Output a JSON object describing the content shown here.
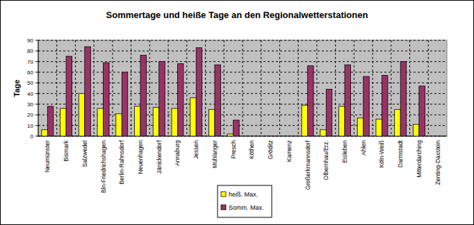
{
  "chart_data": {
    "type": "bar",
    "title": "Sommertage und heiße Tage an den Regionalwetterstationen",
    "y_label": "Tage",
    "categories": [
      "Neumünster",
      "Bismark",
      "Salzwedel",
      "Bln-Friedrichshagen",
      "Berlin-Rahnsdorf",
      "Neuenhagen",
      "Jänickendorf",
      "Annaburg",
      "Jessen",
      "Mühlanger",
      "Presch",
      "Köthen",
      "Gröditz",
      "Kamenz",
      "Großerkmannsdorf",
      "Olbernhau/Erz.",
      "Eisleben",
      "Ahlen",
      "Köln-Weiß",
      "Darmstadt",
      "Mitterdarching",
      "Zenting-Daxstein"
    ],
    "series": [
      {
        "name": "heiß. Max.",
        "color": "#ffff00",
        "values": [
          6,
          26,
          40,
          26,
          21,
          28,
          27,
          26,
          36,
          25,
          2,
          null,
          null,
          null,
          29,
          6,
          28,
          17,
          16,
          25,
          11,
          null
        ]
      },
      {
        "name": "Somm. Max.",
        "color": "#993366",
        "values": [
          28,
          75,
          84,
          69,
          60,
          76,
          70,
          68,
          83,
          67,
          15,
          null,
          null,
          null,
          66,
          44,
          67,
          56,
          57,
          70,
          47,
          null
        ]
      }
    ],
    "ylim": [
      0,
      90
    ],
    "yticks": [
      0,
      10,
      20,
      30,
      40,
      50,
      60,
      70,
      80,
      90
    ],
    "grid": true,
    "legend": "bottom"
  }
}
